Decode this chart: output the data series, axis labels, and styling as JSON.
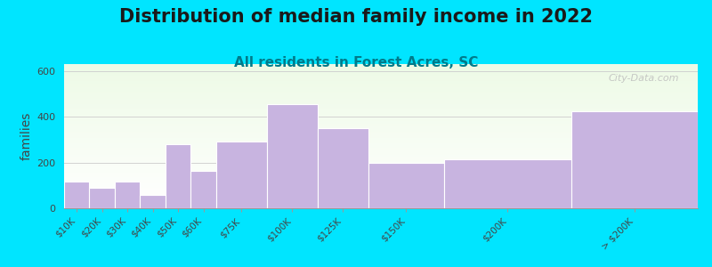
{
  "title": "Distribution of median family income in 2022",
  "subtitle": "All residents in Forest Acres, SC",
  "ylabel": "families",
  "categories": [
    "$10K",
    "$20K",
    "$30K",
    "$40K",
    "$50K",
    "$60K",
    "$75K",
    "$100K",
    "$125K",
    "$150K",
    "$200K",
    "> $200K"
  ],
  "values": [
    115,
    90,
    115,
    60,
    280,
    165,
    290,
    455,
    350,
    200,
    215,
    425
  ],
  "bar_color": "#c8b4e0",
  "bar_edgecolor": "#ffffff",
  "ylim": [
    0,
    630
  ],
  "yticks": [
    0,
    200,
    400,
    600
  ],
  "background_outer": "#00e5ff",
  "watermark": "City-Data.com",
  "title_fontsize": 15,
  "subtitle_fontsize": 11,
  "ylabel_fontsize": 10,
  "bar_left_edges": [
    0,
    1,
    2,
    3,
    4,
    5,
    6,
    8,
    10,
    12,
    15,
    20
  ],
  "bar_widths": [
    1,
    1,
    1,
    1,
    1,
    1,
    2,
    2,
    2,
    3,
    5,
    5
  ]
}
